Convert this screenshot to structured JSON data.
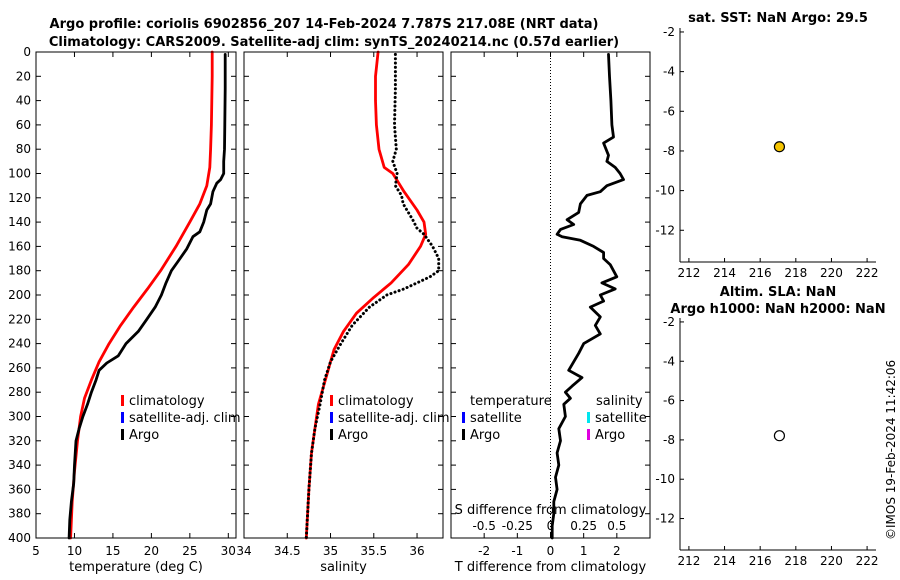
{
  "header": {
    "line1": "Argo profile: coriolis 6902856_207 14-Feb-2024 7.787S 217.08E (NRT data)",
    "line2": "Climatology: CARS2009. Satellite-adj clim: synTS_20240214.nc (0.57d earlier)"
  },
  "watermark": "©IMOS 19-Feb-2024 11:42:06",
  "colors": {
    "climatology": "#ff0000",
    "satellite_adj": "#0000ff",
    "argo": "#000000",
    "sst_marker": "#f5c400",
    "sla_marker": "#ffffff",
    "salinity_satellite": "#00e5ee",
    "salinity_argo": "#e000e0"
  },
  "chart_data": [
    {
      "id": "temperature",
      "type": "line",
      "title": "",
      "xlabel": "temperature (deg C)",
      "ylabel": "depth",
      "xlim": [
        5,
        31
      ],
      "ylim": [
        400,
        0
      ],
      "xticks": [
        "5",
        "10",
        "15",
        "20",
        "25",
        "30"
      ],
      "xtick_values": [
        5,
        10,
        15,
        20,
        25,
        30
      ],
      "yticks": [
        "0",
        "20",
        "40",
        "60",
        "80",
        "100",
        "120",
        "140",
        "160",
        "180",
        "200",
        "220",
        "240",
        "260",
        "280",
        "300",
        "320",
        "340",
        "360",
        "380",
        "400"
      ],
      "ytick_values": [
        0,
        20,
        40,
        60,
        80,
        100,
        120,
        140,
        160,
        180,
        200,
        220,
        240,
        260,
        280,
        300,
        320,
        340,
        360,
        380,
        400
      ],
      "legend": [
        "climatology",
        "satellite-adj. clim",
        "Argo"
      ],
      "series": [
        {
          "name": "climatology",
          "style": "solid",
          "points": [
            [
              27.9,
              0
            ],
            [
              27.9,
              20
            ],
            [
              27.85,
              40
            ],
            [
              27.8,
              60
            ],
            [
              27.7,
              80
            ],
            [
              27.6,
              95
            ],
            [
              27.2,
              110
            ],
            [
              26.3,
              125
            ],
            [
              25.0,
              140
            ],
            [
              23.2,
              160
            ],
            [
              21.2,
              180
            ],
            [
              19.5,
              195
            ],
            [
              17.7,
              210
            ],
            [
              16.0,
              225
            ],
            [
              14.5,
              240
            ],
            [
              13.2,
              255
            ],
            [
              12.2,
              270
            ],
            [
              11.3,
              285
            ],
            [
              10.8,
              300
            ],
            [
              10.4,
              320
            ],
            [
              10.0,
              345
            ],
            [
              9.7,
              370
            ],
            [
              9.5,
              400
            ]
          ]
        },
        {
          "name": "Argo",
          "style": "solid",
          "points": [
            [
              29.6,
              2
            ],
            [
              29.6,
              30
            ],
            [
              29.55,
              60
            ],
            [
              29.5,
              80
            ],
            [
              29.4,
              90
            ],
            [
              29.4,
              100
            ],
            [
              29.0,
              105
            ],
            [
              28.5,
              108
            ],
            [
              28.0,
              115
            ],
            [
              27.7,
              125
            ],
            [
              27.2,
              130
            ],
            [
              26.8,
              140
            ],
            [
              26.3,
              148
            ],
            [
              25.4,
              152
            ],
            [
              24.6,
              162
            ],
            [
              23.5,
              172
            ],
            [
              22.6,
              180
            ],
            [
              21.9,
              190
            ],
            [
              21.3,
              200
            ],
            [
              20.5,
              210
            ],
            [
              19.4,
              220
            ],
            [
              18.3,
              230
            ],
            [
              16.7,
              240
            ],
            [
              15.7,
              250
            ],
            [
              14.2,
              256
            ],
            [
              13.2,
              262
            ],
            [
              12.8,
              270
            ],
            [
              12.2,
              280
            ],
            [
              11.7,
              290
            ],
            [
              11.1,
              300
            ],
            [
              10.6,
              310
            ],
            [
              10.2,
              320
            ],
            [
              10.0,
              340
            ],
            [
              9.9,
              355
            ],
            [
              9.6,
              370
            ],
            [
              9.4,
              385
            ],
            [
              9.3,
              400
            ]
          ]
        }
      ]
    },
    {
      "id": "salinity",
      "type": "line",
      "title": "",
      "xlabel": "salinity",
      "ylabel": "",
      "xlim": [
        34,
        36.3
      ],
      "ylim": [
        400,
        0
      ],
      "xticks": [
        "34",
        "34.5",
        "35",
        "35.5",
        "36"
      ],
      "xtick_values": [
        34,
        34.5,
        35,
        35.5,
        36
      ],
      "legend": [
        "climatology",
        "satellite-adj. clim",
        "Argo"
      ],
      "series": [
        {
          "name": "climatology",
          "style": "solid",
          "points": [
            [
              35.55,
              0
            ],
            [
              35.52,
              20
            ],
            [
              35.52,
              40
            ],
            [
              35.53,
              60
            ],
            [
              35.56,
              80
            ],
            [
              35.62,
              95
            ],
            [
              35.72,
              100
            ],
            [
              35.85,
              115
            ],
            [
              36.0,
              130
            ],
            [
              36.08,
              140
            ],
            [
              36.1,
              150
            ],
            [
              36.04,
              160
            ],
            [
              35.9,
              175
            ],
            [
              35.7,
              190
            ],
            [
              35.5,
              202
            ],
            [
              35.3,
              215
            ],
            [
              35.15,
              230
            ],
            [
              35.04,
              245
            ],
            [
              34.98,
              260
            ],
            [
              34.92,
              275
            ],
            [
              34.86,
              290
            ],
            [
              34.82,
              310
            ],
            [
              34.78,
              330
            ],
            [
              34.75,
              360
            ],
            [
              34.72,
              400
            ]
          ]
        },
        {
          "name": "Argo",
          "style": "dotted",
          "points": [
            [
              35.75,
              2
            ],
            [
              35.75,
              30
            ],
            [
              35.74,
              60
            ],
            [
              35.76,
              80
            ],
            [
              35.72,
              90
            ],
            [
              35.77,
              100
            ],
            [
              35.75,
              110
            ],
            [
              35.82,
              118
            ],
            [
              35.84,
              125
            ],
            [
              35.95,
              138
            ],
            [
              36.0,
              145
            ],
            [
              36.08,
              150
            ],
            [
              36.18,
              160
            ],
            [
              36.25,
              170
            ],
            [
              36.25,
              180
            ],
            [
              36.15,
              185
            ],
            [
              36.0,
              190
            ],
            [
              35.85,
              195
            ],
            [
              35.65,
              200
            ],
            [
              35.45,
              210
            ],
            [
              35.25,
              225
            ],
            [
              35.12,
              240
            ],
            [
              35.0,
              255
            ],
            [
              34.93,
              270
            ],
            [
              34.88,
              290
            ],
            [
              34.82,
              310
            ],
            [
              34.78,
              330
            ],
            [
              34.75,
              360
            ],
            [
              34.72,
              400
            ]
          ]
        }
      ]
    },
    {
      "id": "difference",
      "type": "line",
      "title": "",
      "xlabel": "T difference from climatology",
      "top_xlabel": "S difference from climatology",
      "ylabel": "",
      "xlim": [
        -3,
        3
      ],
      "ylim": [
        400,
        0
      ],
      "xticks": [
        "-2",
        "-1",
        "0",
        "1",
        "2"
      ],
      "xtick_values": [
        -2,
        -1,
        0,
        1,
        2
      ],
      "top_xticks": [
        "-0.5",
        "-0.25",
        "0",
        "0.25",
        "0.5"
      ],
      "top_xtick_values": [
        -2,
        -1,
        0,
        1,
        2
      ],
      "legend_temperature_title": "temperature",
      "legend_salinity_title": "salinity",
      "legend_temperature": [
        "satellite",
        "Argo"
      ],
      "legend_salinity": [
        "satellite",
        "Argo"
      ],
      "series": [
        {
          "name": "T difference (Argo - climatology)",
          "style": "solid",
          "points": [
            [
              1.75,
              2
            ],
            [
              1.78,
              20
            ],
            [
              1.82,
              40
            ],
            [
              1.85,
              60
            ],
            [
              1.9,
              70
            ],
            [
              1.6,
              75
            ],
            [
              1.75,
              85
            ],
            [
              1.7,
              90
            ],
            [
              1.95,
              95
            ],
            [
              2.1,
              100
            ],
            [
              2.2,
              105
            ],
            [
              1.7,
              110
            ],
            [
              1.5,
              115
            ],
            [
              1.1,
              118
            ],
            [
              0.9,
              125
            ],
            [
              0.85,
              132
            ],
            [
              0.5,
              138
            ],
            [
              0.7,
              142
            ],
            [
              0.3,
              146
            ],
            [
              0.2,
              150
            ],
            [
              0.35,
              152
            ],
            [
              0.9,
              155
            ],
            [
              1.3,
              160
            ],
            [
              1.6,
              165
            ],
            [
              1.6,
              170
            ],
            [
              1.8,
              175
            ],
            [
              2.0,
              185
            ],
            [
              1.55,
              190
            ],
            [
              1.95,
              195
            ],
            [
              1.5,
              200
            ],
            [
              1.6,
              205
            ],
            [
              1.2,
              210
            ],
            [
              1.5,
              218
            ],
            [
              1.35,
              225
            ],
            [
              1.5,
              232
            ],
            [
              1.0,
              240
            ],
            [
              0.85,
              248
            ],
            [
              0.7,
              255
            ],
            [
              0.55,
              262
            ],
            [
              0.95,
              268
            ],
            [
              0.65,
              275
            ],
            [
              0.45,
              280
            ],
            [
              0.6,
              285
            ],
            [
              0.4,
              290
            ],
            [
              0.45,
              300
            ],
            [
              0.25,
              310
            ],
            [
              0.3,
              320
            ],
            [
              0.2,
              330
            ],
            [
              0.25,
              340
            ],
            [
              0.15,
              350
            ],
            [
              0.2,
              360
            ],
            [
              0.1,
              370
            ],
            [
              0.1,
              380
            ],
            [
              0.05,
              390
            ],
            [
              0.05,
              400
            ]
          ]
        }
      ]
    },
    {
      "id": "sst_map",
      "type": "scatter",
      "title": "sat. SST: NaN Argo: 29.5",
      "xlim": [
        211.5,
        222.5
      ],
      "ylim": [
        -13.6,
        -1.8
      ],
      "xticks": [
        "212",
        "214",
        "216",
        "218",
        "220",
        "222"
      ],
      "xtick_values": [
        212,
        214,
        216,
        218,
        220,
        222
      ],
      "yticks": [
        "-2",
        "-4",
        "-6",
        "-8",
        "-10",
        "-12"
      ],
      "ytick_values": [
        -2,
        -4,
        -6,
        -8,
        -10,
        -12
      ],
      "points": [
        {
          "x": 217.08,
          "y": -7.787,
          "value": 29.5
        }
      ]
    },
    {
      "id": "sla_map",
      "type": "scatter",
      "title": "Altim. SLA: NaN",
      "subtitle": "Argo h1000: NaN h2000: NaN",
      "xlim": [
        211.5,
        222.5
      ],
      "ylim": [
        -13.6,
        -1.8
      ],
      "xticks": [
        "212",
        "214",
        "216",
        "218",
        "220",
        "222"
      ],
      "xtick_values": [
        212,
        214,
        216,
        218,
        220,
        222
      ],
      "yticks": [
        "-2",
        "-4",
        "-6",
        "-8",
        "-10",
        "-12"
      ],
      "ytick_values": [
        -2,
        -4,
        -6,
        -8,
        -10,
        -12
      ],
      "points": [
        {
          "x": 217.08,
          "y": -7.787,
          "value": null
        }
      ]
    }
  ]
}
